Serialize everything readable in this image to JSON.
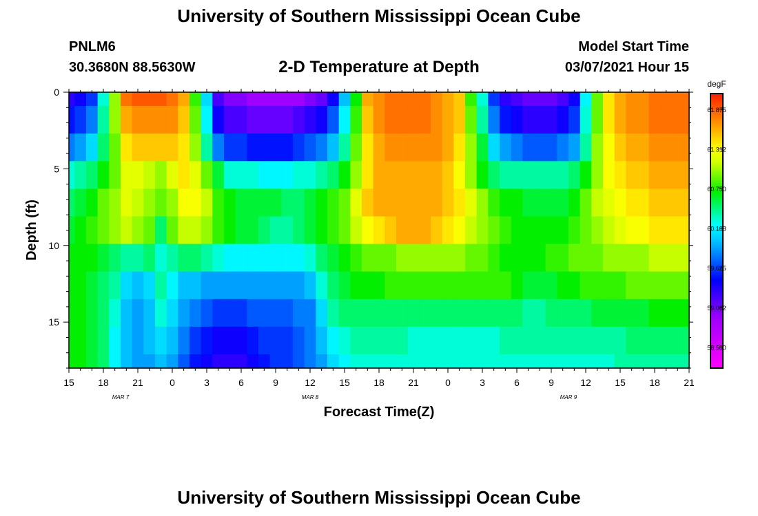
{
  "header": {
    "title": "University of Southern Mississippi Ocean Cube",
    "station": "PNLM6",
    "coords": "30.3680N 88.5630W",
    "subtitle": "2-D Temperature at Depth",
    "model_start_label": "Model Start Time",
    "model_start_value": "03/07/2021 Hour 15"
  },
  "footer": {
    "title": "University of Southern Mississippi Ocean Cube"
  },
  "chart_data": {
    "type": "heatmap",
    "title": "2-D Temperature at Depth",
    "xlabel": "Forecast Time(Z)",
    "ylabel": "Depth (ft)",
    "xlim": [
      0,
      54
    ],
    "ylim": [
      0,
      18
    ],
    "x_tick_labels": [
      "15",
      "18",
      "21",
      "0",
      "3",
      "6",
      "9",
      "12",
      "15",
      "18",
      "21",
      "0",
      "3",
      "6",
      "9",
      "12",
      "15",
      "18",
      "21"
    ],
    "y_ticks": [
      0,
      5,
      10,
      15
    ],
    "date_labels": [
      {
        "label": "MAR 7",
        "x": 4.5
      },
      {
        "label": "MAR 8",
        "x": 21
      },
      {
        "label": "MAR 9",
        "x": 43.5
      }
    ],
    "colorbar": {
      "units": "degF",
      "range": [
        58.2,
        62.1
      ],
      "tick_values": [
        61.875,
        61.312,
        60.75,
        60.188,
        59.625,
        59.062,
        58.5
      ]
    },
    "hours": [
      0,
      1,
      2,
      3,
      4,
      5,
      6,
      7,
      8,
      9,
      10,
      11,
      12,
      13,
      14,
      15,
      16,
      17,
      18,
      19,
      20,
      21,
      22,
      23,
      24,
      25,
      26,
      27,
      28,
      29,
      30,
      31,
      32,
      33,
      34,
      35,
      36,
      37,
      38,
      39,
      40,
      41,
      42,
      43,
      44,
      45,
      46,
      47,
      48,
      49,
      50,
      51,
      52,
      53,
      54
    ],
    "depth_levels": [
      0,
      1.8,
      3.6,
      5.4,
      7.2,
      9,
      10.8,
      12.6,
      14.4,
      16.2,
      18
    ],
    "temperature_degF_by_depth": [
      [
        59.3,
        59.4,
        59.6,
        60.3,
        61.0,
        61.8,
        61.9,
        61.9,
        61.9,
        61.8,
        61.6,
        60.8,
        60.1,
        59.2,
        59.0,
        59.0,
        58.9,
        58.9,
        58.9,
        58.9,
        58.9,
        59.0,
        59.1,
        59.4,
        60.0,
        60.7,
        61.6,
        61.7,
        61.8,
        61.8,
        61.8,
        61.8,
        61.7,
        61.6,
        61.5,
        60.8,
        60.3,
        59.6,
        59.3,
        59.2,
        59.1,
        59.1,
        59.1,
        59.2,
        59.4,
        60.2,
        60.9,
        61.4,
        61.6,
        61.7,
        61.7,
        61.8,
        61.8,
        61.8,
        61.8
      ],
      [
        59.5,
        59.6,
        59.8,
        60.4,
        61.0,
        61.6,
        61.7,
        61.7,
        61.7,
        61.7,
        61.5,
        60.9,
        60.2,
        59.4,
        59.2,
        59.2,
        59.1,
        59.1,
        59.1,
        59.1,
        59.2,
        59.3,
        59.4,
        59.7,
        60.2,
        60.8,
        61.5,
        61.7,
        61.8,
        61.8,
        61.8,
        61.8,
        61.7,
        61.6,
        61.5,
        60.9,
        60.4,
        59.8,
        59.5,
        59.4,
        59.3,
        59.3,
        59.3,
        59.4,
        59.6,
        60.3,
        60.9,
        61.4,
        61.6,
        61.7,
        61.7,
        61.8,
        61.8,
        61.8,
        61.8
      ],
      [
        59.8,
        59.9,
        60.1,
        60.5,
        60.9,
        61.4,
        61.5,
        61.5,
        61.5,
        61.5,
        61.4,
        61.0,
        60.4,
        59.8,
        59.6,
        59.6,
        59.5,
        59.5,
        59.5,
        59.5,
        59.6,
        59.7,
        59.8,
        60.0,
        60.4,
        60.9,
        61.4,
        61.6,
        61.7,
        61.7,
        61.7,
        61.7,
        61.7,
        61.6,
        61.4,
        61.0,
        60.6,
        60.1,
        59.9,
        59.8,
        59.7,
        59.7,
        59.7,
        59.8,
        59.9,
        60.4,
        61.0,
        61.3,
        61.5,
        61.6,
        61.6,
        61.7,
        61.7,
        61.7,
        61.7
      ],
      [
        60.3,
        60.4,
        60.5,
        60.7,
        60.9,
        61.2,
        61.2,
        61.1,
        61.0,
        61.2,
        61.4,
        61.2,
        60.9,
        60.6,
        60.3,
        60.3,
        60.3,
        60.2,
        60.2,
        60.2,
        60.3,
        60.3,
        60.4,
        60.5,
        60.7,
        61.0,
        61.4,
        61.6,
        61.6,
        61.6,
        61.6,
        61.6,
        61.6,
        61.5,
        61.3,
        61.0,
        60.7,
        60.5,
        60.4,
        60.4,
        60.4,
        60.4,
        60.4,
        60.4,
        60.5,
        60.7,
        61.0,
        61.3,
        61.4,
        61.5,
        61.5,
        61.6,
        61.6,
        61.6,
        61.6
      ],
      [
        60.5,
        60.6,
        60.7,
        60.9,
        61.0,
        61.2,
        61.1,
        61.0,
        60.9,
        61.0,
        61.3,
        61.3,
        61.1,
        60.8,
        60.7,
        60.6,
        60.6,
        60.6,
        60.6,
        60.5,
        60.5,
        60.6,
        60.7,
        60.8,
        60.9,
        61.2,
        61.5,
        61.6,
        61.6,
        61.6,
        61.6,
        61.6,
        61.6,
        61.5,
        61.4,
        61.2,
        61.0,
        60.8,
        60.7,
        60.7,
        60.6,
        60.6,
        60.6,
        60.6,
        60.7,
        60.9,
        61.1,
        61.2,
        61.3,
        61.4,
        61.4,
        61.5,
        61.5,
        61.5,
        61.5
      ],
      [
        60.6,
        60.7,
        60.8,
        60.9,
        61.0,
        61.1,
        61.0,
        60.9,
        60.5,
        60.9,
        61.1,
        61.1,
        61.0,
        60.8,
        60.7,
        60.6,
        60.6,
        60.5,
        60.4,
        60.4,
        60.5,
        60.6,
        60.7,
        60.8,
        60.9,
        61.1,
        61.3,
        61.4,
        61.5,
        61.6,
        61.6,
        61.6,
        61.5,
        61.4,
        61.3,
        61.1,
        61.0,
        60.9,
        60.8,
        60.7,
        60.7,
        60.7,
        60.7,
        60.7,
        60.8,
        60.9,
        61.0,
        61.1,
        61.2,
        61.3,
        61.3,
        61.4,
        61.4,
        61.4,
        61.4
      ],
      [
        60.7,
        60.7,
        60.7,
        60.6,
        60.5,
        60.4,
        60.4,
        60.5,
        60.3,
        60.4,
        60.5,
        60.5,
        60.4,
        60.3,
        60.2,
        60.2,
        60.2,
        60.2,
        60.2,
        60.2,
        60.2,
        60.3,
        60.5,
        60.6,
        60.7,
        60.8,
        60.9,
        60.9,
        60.9,
        61.0,
        61.0,
        61.0,
        61.0,
        61.0,
        61.0,
        60.9,
        60.9,
        60.8,
        60.7,
        60.7,
        60.7,
        60.7,
        60.8,
        60.8,
        60.9,
        60.9,
        60.9,
        61.0,
        61.0,
        61.0,
        61.0,
        61.1,
        61.1,
        61.1,
        61.1
      ],
      [
        60.7,
        60.7,
        60.6,
        60.5,
        60.4,
        60.1,
        60.0,
        60.1,
        60.4,
        60.2,
        60.0,
        60.0,
        59.9,
        59.9,
        59.9,
        59.9,
        59.9,
        59.9,
        59.9,
        59.9,
        59.9,
        60.0,
        60.3,
        60.5,
        60.6,
        60.7,
        60.7,
        60.7,
        60.8,
        60.8,
        60.8,
        60.8,
        60.8,
        60.8,
        60.8,
        60.8,
        60.8,
        60.8,
        60.8,
        60.7,
        60.6,
        60.6,
        60.6,
        60.7,
        60.7,
        60.8,
        60.8,
        60.8,
        60.8,
        60.9,
        60.9,
        60.9,
        60.9,
        60.9,
        60.9
      ],
      [
        60.7,
        60.7,
        60.6,
        60.5,
        60.3,
        60.0,
        59.9,
        60.0,
        60.3,
        60.1,
        59.9,
        59.8,
        59.7,
        59.6,
        59.6,
        59.6,
        59.7,
        59.7,
        59.7,
        59.7,
        59.8,
        59.8,
        60.1,
        60.4,
        60.5,
        60.5,
        60.5,
        60.5,
        60.5,
        60.5,
        60.5,
        60.5,
        60.5,
        60.5,
        60.5,
        60.5,
        60.5,
        60.5,
        60.5,
        60.5,
        60.4,
        60.4,
        60.5,
        60.5,
        60.5,
        60.5,
        60.6,
        60.6,
        60.6,
        60.6,
        60.6,
        60.7,
        60.7,
        60.7,
        60.7
      ],
      [
        60.7,
        60.7,
        60.6,
        60.5,
        60.2,
        60.0,
        59.9,
        60.0,
        60.1,
        60.0,
        59.8,
        59.6,
        59.5,
        59.4,
        59.4,
        59.4,
        59.5,
        59.6,
        59.6,
        59.6,
        59.7,
        59.8,
        60.0,
        60.2,
        60.3,
        60.4,
        60.4,
        60.4,
        60.4,
        60.4,
        60.3,
        60.3,
        60.3,
        60.3,
        60.3,
        60.3,
        60.3,
        60.3,
        60.4,
        60.4,
        60.4,
        60.4,
        60.4,
        60.4,
        60.4,
        60.4,
        60.4,
        60.4,
        60.4,
        60.5,
        60.5,
        60.5,
        60.5,
        60.5,
        60.5
      ],
      [
        60.7,
        60.7,
        60.6,
        60.5,
        60.2,
        60.0,
        59.9,
        59.9,
        60.0,
        59.9,
        59.7,
        59.5,
        59.4,
        59.3,
        59.3,
        59.3,
        59.4,
        59.5,
        59.6,
        59.6,
        59.7,
        59.8,
        59.9,
        60.1,
        60.2,
        60.3,
        60.3,
        60.3,
        60.3,
        60.3,
        60.3,
        60.3,
        60.3,
        60.3,
        60.3,
        60.3,
        60.3,
        60.3,
        60.3,
        60.3,
        60.3,
        60.3,
        60.3,
        60.3,
        60.3,
        60.3,
        60.3,
        60.3,
        60.4,
        60.4,
        60.4,
        60.4,
        60.4,
        60.4,
        60.4
      ]
    ]
  }
}
